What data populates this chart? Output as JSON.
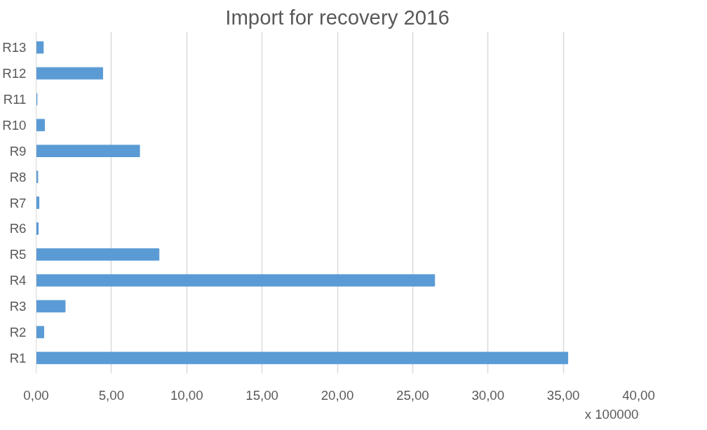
{
  "chart_data": {
    "type": "bar",
    "orientation": "horizontal",
    "title": "Import for recovery 2016",
    "categories": [
      "R13",
      "R12",
      "R11",
      "R10",
      "R9",
      "R8",
      "R7",
      "R6",
      "R5",
      "R4",
      "R3",
      "R2",
      "R1"
    ],
    "values": [
      0.48,
      4.42,
      0.06,
      0.56,
      6.87,
      0.11,
      0.19,
      0.14,
      8.16,
      26.46,
      1.93,
      0.51,
      35.3
    ],
    "color": "#5b9bd5",
    "xlim": [
      0,
      40
    ],
    "xticks": [
      {
        "value": 0,
        "label": "0,00"
      },
      {
        "value": 5,
        "label": "5,00"
      },
      {
        "value": 10,
        "label": "10,00"
      },
      {
        "value": 15,
        "label": "15,00"
      },
      {
        "value": 20,
        "label": "20,00"
      },
      {
        "value": 25,
        "label": "25,00"
      },
      {
        "value": 30,
        "label": "30,00"
      },
      {
        "value": 35,
        "label": "35,00"
      },
      {
        "value": 40,
        "label": "40,00"
      }
    ],
    "annotations": [
      "x 100000"
    ],
    "grid": "x"
  }
}
